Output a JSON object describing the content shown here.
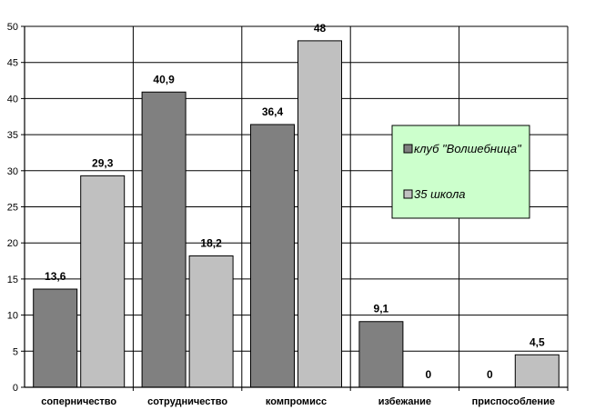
{
  "chart_data": {
    "type": "bar",
    "categories": [
      "соперничество",
      "сотрудничество",
      "компромисс",
      "избежание",
      "приспособление"
    ],
    "series": [
      {
        "name": "клуб \"Волшебница\"",
        "values": [
          13.6,
          40.9,
          36.4,
          9.1,
          0
        ],
        "labels": [
          "13,6",
          "40,9",
          "36,4",
          "9,1",
          "0"
        ],
        "color": "#808080"
      },
      {
        "name": "35 школа",
        "values": [
          29.3,
          18.2,
          48,
          0,
          4.5
        ],
        "labels": [
          "29,3",
          "18,2",
          "48",
          "0",
          "4,5"
        ],
        "color": "#c0c0c0"
      }
    ],
    "ylim": [
      0,
      50
    ],
    "yticks": [
      0,
      5,
      10,
      15,
      20,
      25,
      30,
      35,
      40,
      45,
      50
    ],
    "grid": true,
    "legend": {
      "placement": "right",
      "background": "#ccffcc"
    }
  }
}
